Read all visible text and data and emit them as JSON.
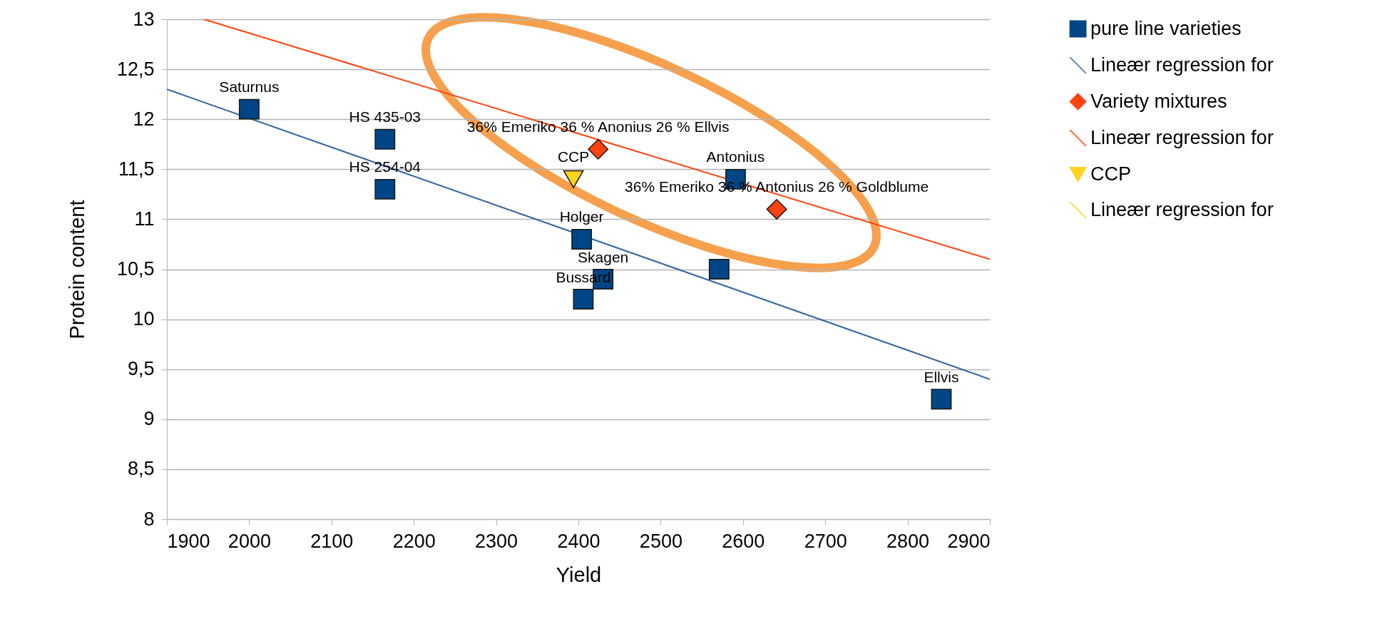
{
  "chart_data": {
    "type": "scatter",
    "xlabel": "Yield",
    "ylabel": "Protein content",
    "xlim": [
      1900,
      2900
    ],
    "xticks": [
      1900,
      2000,
      2100,
      2200,
      2300,
      2400,
      2500,
      2600,
      2700,
      2800,
      2900
    ],
    "ylim": [
      8,
      13
    ],
    "yticks": [
      8,
      {
        "value": 8.5,
        "label": "8,5"
      },
      9,
      {
        "value": 9.5,
        "label": "9,5"
      },
      10,
      {
        "value": 10.5,
        "label": "10,5"
      },
      11,
      {
        "value": 11.5,
        "label": "11,5"
      },
      12,
      {
        "value": 12.5,
        "label": "12,5"
      },
      13
    ],
    "grid": "y",
    "legend": "right",
    "series": [
      {
        "name": "pure line varieties",
        "type": "scatter",
        "marker": "square",
        "color": "#004586",
        "x": [
          2000,
          2165,
          2165,
          2404,
          2430,
          2406,
          2591,
          2571,
          2841
        ],
        "values": [
          12.1,
          11.8,
          11.3,
          10.8,
          10.4,
          10.2,
          11.4,
          10.5,
          9.2
        ]
      },
      {
        "name": "Lineær regression for",
        "type": "line",
        "color": "#3465a4",
        "x": [
          1900,
          2900
        ],
        "values": [
          12.3,
          9.4
        ]
      },
      {
        "name": "Variety mixtures",
        "type": "scatter",
        "marker": "diamond",
        "color": "#ff420e",
        "x": [
          2424,
          2641
        ],
        "values": [
          11.7,
          11.1
        ]
      },
      {
        "name": "Lineær regression for",
        "type": "line",
        "color": "#ff420e",
        "x": [
          1945,
          2900
        ],
        "values": [
          13,
          10.6
        ]
      },
      {
        "name": "CCP",
        "type": "scatter",
        "marker": "triangle",
        "color": "#ffd320",
        "x": [
          2394
        ],
        "values": [
          11.4
        ]
      },
      {
        "name": "Lineær regression for",
        "type": "line",
        "color": "#ffd320"
      }
    ],
    "annotations": [
      {
        "text": "Saturnus",
        "x": 2000,
        "y": 12.1
      },
      {
        "text": "HS 435-03",
        "x": 2165,
        "y": 11.8
      },
      {
        "text": "HS 254-04",
        "x": 2165,
        "y": 11.3
      },
      {
        "text": "Holger",
        "x": 2404,
        "y": 10.8
      },
      {
        "text": "Skagen",
        "x": 2430,
        "y": 10.4
      },
      {
        "text": "Bussard",
        "x": 2406,
        "y": 10.2
      },
      {
        "text": "Antonius",
        "x": 2591,
        "y": 11.4
      },
      {
        "text": "Ellvis",
        "x": 2841,
        "y": 9.2
      },
      {
        "text": "36% Emeriko 36 % Anonius 26 % Ellvis",
        "x": 2424,
        "y": 11.7
      },
      {
        "text": "36% Emeriko 36 % Antonius 26 % Goldblume",
        "x": 2641,
        "y": 11.1
      },
      {
        "text": "CCP",
        "x": 2394,
        "y": 11.4
      }
    ]
  }
}
